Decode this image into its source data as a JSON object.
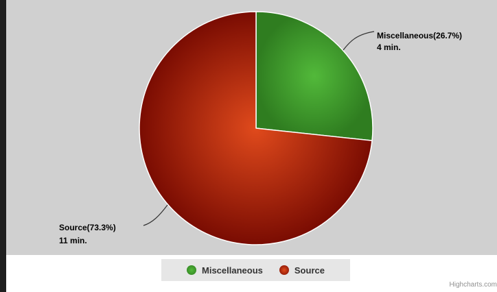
{
  "chart_data": {
    "type": "pie",
    "slices": [
      {
        "name": "Miscellaneous",
        "percent": 26.7,
        "label": "Miscellaneous(26.7%)",
        "sublabel": "4 min.",
        "color": "#3e9a2c"
      },
      {
        "name": "Source",
        "percent": 73.3,
        "label": "Source(73.3%)",
        "sublabel": "11 min.",
        "color": "#c9391a"
      }
    ],
    "legend_position": "bottom-center"
  },
  "legend": {
    "items": [
      {
        "label": "Miscellaneous",
        "color": "#3e9a2c"
      },
      {
        "label": "Source",
        "color": "#c9391a"
      }
    ]
  },
  "credits": "Highcharts.com"
}
